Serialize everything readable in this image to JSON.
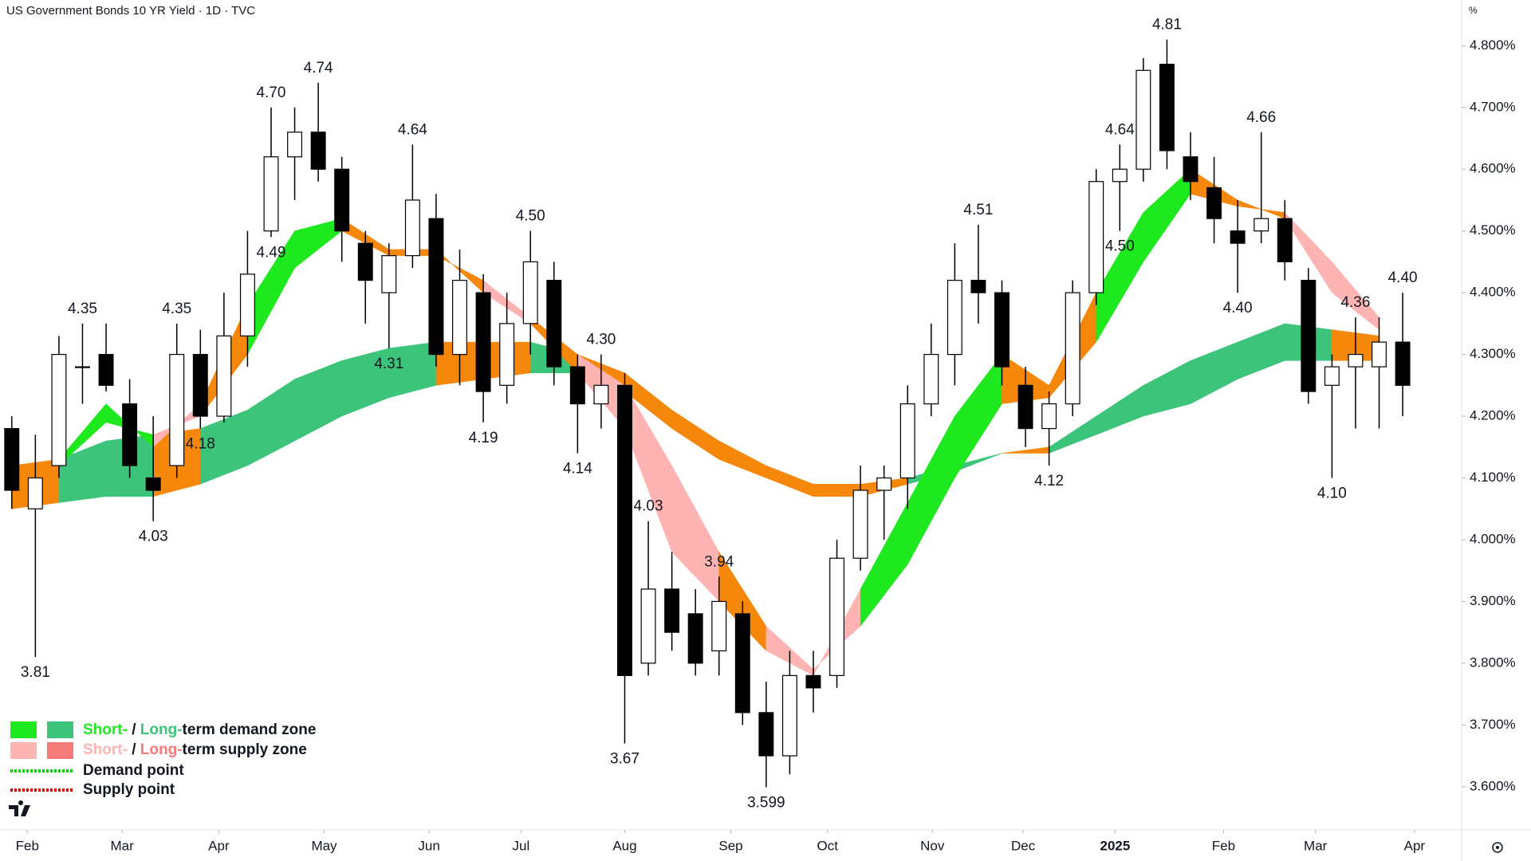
{
  "chart_data": {
    "type": "candlestick",
    "title": "US Government Bonds 10 YR Yield · 1D · TVC",
    "y_unit": "%",
    "xlim": [
      -0.5,
      61.5
    ],
    "ylim": [
      3.53,
      4.874
    ],
    "yticks": [
      {
        "value": 3.6,
        "label": "3.600%"
      },
      {
        "value": 3.7,
        "label": "3.700%"
      },
      {
        "value": 3.8,
        "label": "3.800%"
      },
      {
        "value": 3.9,
        "label": "3.900%"
      },
      {
        "value": 4.0,
        "label": "4.000%"
      },
      {
        "value": 4.1,
        "label": "4.100%"
      },
      {
        "value": 4.2,
        "label": "4.200%"
      },
      {
        "value": 4.3,
        "label": "4.300%"
      },
      {
        "value": 4.4,
        "label": "4.400%"
      },
      {
        "value": 4.5,
        "label": "4.500%"
      },
      {
        "value": 4.6,
        "label": "4.600%"
      },
      {
        "value": 4.7,
        "label": "4.700%"
      },
      {
        "value": 4.8,
        "label": "4.800%"
      }
    ],
    "xticks": [
      {
        "value": 0.66,
        "label": "Feb"
      },
      {
        "value": 4.68,
        "label": "Mar"
      },
      {
        "value": 8.78,
        "label": "Apr"
      },
      {
        "value": 13.25,
        "label": "May"
      },
      {
        "value": 17.7,
        "label": "Jun"
      },
      {
        "value": 21.6,
        "label": "Jul"
      },
      {
        "value": 26.0,
        "label": "Aug"
      },
      {
        "value": 30.5,
        "label": "Sep"
      },
      {
        "value": 34.6,
        "label": "Oct"
      },
      {
        "value": 39.05,
        "label": "Nov"
      },
      {
        "value": 42.9,
        "label": "Dec"
      },
      {
        "value": 46.8,
        "label": "2025"
      },
      {
        "value": 51.4,
        "label": "Feb"
      },
      {
        "value": 55.3,
        "label": "Mar"
      },
      {
        "value": 59.5,
        "label": "Apr"
      }
    ],
    "candles": {
      "open": [
        4.18,
        4.05,
        4.12,
        4.28,
        4.3,
        4.22,
        4.1,
        4.12,
        4.3,
        4.2,
        4.33,
        4.5,
        4.62,
        4.66,
        4.6,
        4.48,
        4.4,
        4.46,
        4.52,
        4.3,
        4.4,
        4.25,
        4.35,
        4.42,
        4.28,
        4.22,
        4.25,
        3.8,
        3.92,
        3.88,
        3.82,
        3.88,
        3.72,
        3.65,
        3.78,
        3.78,
        3.97,
        4.08,
        4.1,
        4.22,
        4.3,
        4.42,
        4.4,
        4.25,
        4.18,
        4.22,
        4.4,
        4.58,
        4.6,
        4.77,
        4.62,
        4.57,
        4.5,
        4.5,
        4.52,
        4.42,
        4.25,
        4.28,
        4.28,
        4.32
      ],
      "high": [
        4.2,
        4.17,
        4.33,
        4.35,
        4.35,
        4.26,
        4.2,
        4.35,
        4.34,
        4.4,
        4.5,
        4.7,
        4.7,
        4.74,
        4.62,
        4.5,
        4.48,
        4.64,
        4.56,
        4.47,
        4.43,
        4.4,
        4.5,
        4.45,
        4.3,
        4.3,
        4.27,
        4.03,
        3.98,
        3.92,
        3.94,
        3.9,
        3.77,
        3.82,
        3.82,
        4.0,
        4.12,
        4.12,
        4.25,
        4.35,
        4.48,
        4.51,
        4.42,
        4.28,
        4.24,
        4.42,
        4.6,
        4.64,
        4.78,
        4.81,
        4.66,
        4.62,
        4.55,
        4.66,
        4.55,
        4.44,
        4.3,
        4.36,
        4.36,
        4.4
      ],
      "low": [
        4.05,
        3.81,
        4.1,
        4.22,
        4.24,
        4.1,
        4.03,
        4.1,
        4.18,
        4.19,
        4.28,
        4.49,
        4.55,
        4.58,
        4.45,
        4.35,
        4.31,
        4.44,
        4.28,
        4.25,
        4.19,
        4.22,
        4.3,
        4.25,
        4.14,
        4.18,
        3.67,
        3.78,
        3.82,
        3.78,
        3.78,
        3.7,
        3.599,
        3.62,
        3.72,
        3.76,
        3.95,
        4.0,
        4.05,
        4.2,
        4.25,
        4.35,
        4.25,
        4.15,
        4.12,
        4.2,
        4.38,
        4.5,
        4.58,
        4.6,
        4.55,
        4.48,
        4.4,
        4.48,
        4.42,
        4.22,
        4.1,
        4.18,
        4.18,
        4.2
      ],
      "close": [
        4.08,
        4.1,
        4.3,
        4.28,
        4.25,
        4.12,
        4.08,
        4.3,
        4.2,
        4.33,
        4.43,
        4.62,
        4.66,
        4.6,
        4.5,
        4.42,
        4.46,
        4.55,
        4.3,
        4.42,
        4.24,
        4.35,
        4.45,
        4.28,
        4.22,
        4.25,
        3.78,
        3.92,
        3.85,
        3.8,
        3.9,
        3.72,
        3.65,
        3.78,
        3.76,
        3.97,
        4.08,
        4.1,
        4.22,
        4.3,
        4.42,
        4.4,
        4.28,
        4.18,
        4.22,
        4.4,
        4.58,
        4.6,
        4.76,
        4.63,
        4.58,
        4.52,
        4.48,
        4.52,
        4.45,
        4.24,
        4.28,
        4.3,
        4.32,
        4.25
      ]
    },
    "up_color": "#ffffff",
    "down_color": "#000000",
    "zones": {
      "x": [
        0,
        2,
        4,
        6,
        8,
        10,
        12,
        14,
        16,
        18,
        20,
        22,
        24,
        26,
        28,
        30,
        32,
        34,
        36,
        38,
        40,
        42,
        44,
        46,
        48,
        50,
        52,
        54,
        56,
        58
      ],
      "short_fast": [
        4.12,
        4.13,
        4.22,
        4.15,
        4.22,
        4.38,
        4.5,
        4.52,
        4.47,
        4.47,
        4.4,
        4.35,
        4.27,
        4.18,
        3.98,
        3.9,
        3.82,
        3.78,
        3.92,
        4.06,
        4.2,
        4.3,
        4.25,
        4.4,
        4.53,
        4.6,
        4.55,
        4.52,
        4.4,
        4.34
      ],
      "short_slow": [
        4.1,
        4.12,
        4.19,
        4.17,
        4.2,
        4.3,
        4.44,
        4.5,
        4.46,
        4.46,
        4.42,
        4.36,
        4.3,
        4.25,
        4.12,
        3.98,
        3.86,
        3.79,
        3.86,
        3.96,
        4.1,
        4.22,
        4.23,
        4.32,
        4.45,
        4.56,
        4.54,
        4.53,
        4.45,
        4.36
      ],
      "long_fast": [
        4.1,
        4.13,
        4.16,
        4.17,
        4.18,
        4.21,
        4.26,
        4.29,
        4.31,
        4.32,
        4.32,
        4.32,
        4.3,
        4.27,
        4.21,
        4.16,
        4.12,
        4.09,
        4.09,
        4.1,
        4.12,
        4.14,
        4.15,
        4.2,
        4.25,
        4.29,
        4.32,
        4.35,
        4.34,
        4.33
      ],
      "long_slow": [
        4.05,
        4.06,
        4.07,
        4.07,
        4.09,
        4.12,
        4.16,
        4.2,
        4.23,
        4.25,
        4.26,
        4.27,
        4.27,
        4.24,
        4.18,
        4.13,
        4.1,
        4.07,
        4.07,
        4.09,
        4.11,
        4.14,
        4.14,
        4.17,
        4.2,
        4.22,
        4.26,
        4.29,
        4.29,
        4.29
      ]
    },
    "colors": {
      "short_demand": "#1ee81e",
      "long_demand": "#3cc47a",
      "short_supply": "#ffb4b4",
      "long_supply": "#f77a7a",
      "neutral": "#f5870a"
    },
    "peak_labels": [
      {
        "at": 1,
        "value": 3.81,
        "label": "3.81"
      },
      {
        "at": 3,
        "value": 4.35,
        "label": "4.35"
      },
      {
        "at": 6,
        "value": 4.03,
        "label": "4.03"
      },
      {
        "at": 7,
        "value": 4.35,
        "label": "4.35"
      },
      {
        "at": 8,
        "value": 4.18,
        "label": "4.18"
      },
      {
        "at": 11,
        "value": 4.7,
        "label": "4.70"
      },
      {
        "at": 11,
        "value": 4.49,
        "label": "4.49"
      },
      {
        "at": 13,
        "value": 4.74,
        "label": "4.74"
      },
      {
        "at": 16,
        "value": 4.31,
        "label": "4.31"
      },
      {
        "at": 17,
        "value": 4.64,
        "label": "4.64"
      },
      {
        "at": 20,
        "value": 4.19,
        "label": "4.19"
      },
      {
        "at": 22,
        "value": 4.5,
        "label": "4.50"
      },
      {
        "at": 24,
        "value": 4.14,
        "label": "4.14"
      },
      {
        "at": 25,
        "value": 4.3,
        "label": "4.30"
      },
      {
        "at": 26,
        "value": 3.67,
        "label": "3.67"
      },
      {
        "at": 27,
        "value": 4.03,
        "label": "4.03"
      },
      {
        "at": 30,
        "value": 3.94,
        "label": "3.94"
      },
      {
        "at": 32,
        "value": 3.599,
        "label": "3.599"
      },
      {
        "at": 41,
        "value": 4.51,
        "label": "4.51"
      },
      {
        "at": 44,
        "value": 4.12,
        "label": "4.12"
      },
      {
        "at": 47,
        "value": 4.64,
        "label": "4.64"
      },
      {
        "at": 47,
        "value": 4.5,
        "label": "4.50"
      },
      {
        "at": 49,
        "value": 4.81,
        "label": "4.81"
      },
      {
        "at": 52,
        "value": 4.4,
        "label": "4.40"
      },
      {
        "at": 53,
        "value": 4.66,
        "label": "4.66"
      },
      {
        "at": 56,
        "value": 4.1,
        "label": "4.10"
      },
      {
        "at": 57,
        "value": 4.36,
        "label": "4.36"
      },
      {
        "at": 59,
        "value": 4.4,
        "label": "4.40"
      }
    ],
    "legend": {
      "demand_zone": [
        "Short-",
        " / ",
        "Long-",
        "term demand zone"
      ],
      "supply_zone": [
        "Short-",
        " / ",
        "Long-",
        "term supply zone"
      ],
      "demand_point": "Demand point",
      "supply_point": "Supply point"
    }
  }
}
